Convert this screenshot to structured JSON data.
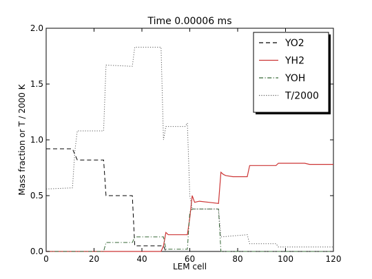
{
  "chart_data": {
    "type": "line",
    "title": "Time 0.00006 ms",
    "xlabel": "LEM cell",
    "ylabel": "Mass fraction or T / 2000 K",
    "xlim": [
      0,
      120
    ],
    "ylim": [
      0,
      2.0
    ],
    "xticks": [
      0,
      20,
      40,
      60,
      80,
      100,
      120
    ],
    "xtick_labels": [
      "0",
      "20",
      "40",
      "60",
      "80",
      "100",
      "120"
    ],
    "yticks": [
      0,
      0.5,
      1.0,
      1.5,
      2.0
    ],
    "ytick_labels": [
      "0.0",
      "0.5",
      "1.0",
      "1.5",
      "2.0"
    ],
    "grid": false,
    "legend_position": "top-right",
    "series": [
      {
        "name": "YO2",
        "color": "#000000",
        "style": "dashed",
        "x": [
          0,
          11,
          12,
          13,
          24,
          25,
          36,
          37,
          49,
          50,
          120
        ],
        "y": [
          0.92,
          0.92,
          0.87,
          0.82,
          0.82,
          0.5,
          0.5,
          0.05,
          0.05,
          0.0,
          0.0
        ]
      },
      {
        "name": "YH2",
        "color": "#cc3333",
        "style": "solid",
        "x": [
          0,
          48,
          49,
          50,
          51,
          55,
          59,
          60,
          61,
          62,
          64,
          68,
          72,
          73,
          74,
          75,
          78,
          80,
          84,
          85,
          88,
          92,
          96,
          97,
          100,
          104,
          108,
          110,
          120
        ],
        "y": [
          0.0,
          0.0,
          0.05,
          0.17,
          0.15,
          0.15,
          0.15,
          0.3,
          0.5,
          0.44,
          0.45,
          0.44,
          0.43,
          0.71,
          0.69,
          0.68,
          0.67,
          0.67,
          0.67,
          0.77,
          0.77,
          0.77,
          0.77,
          0.79,
          0.79,
          0.79,
          0.79,
          0.78,
          0.78
        ]
      },
      {
        "name": "YOH",
        "color": "#336633",
        "style": "dashdot",
        "x": [
          0,
          24,
          25,
          36,
          37,
          49,
          50,
          59,
          60,
          61,
          62,
          72,
          73,
          84,
          85,
          96,
          97,
          120
        ],
        "y": [
          0.0,
          0.0,
          0.08,
          0.08,
          0.13,
          0.13,
          0.02,
          0.02,
          0.35,
          0.38,
          0.38,
          0.38,
          0.0,
          0.0,
          0.0,
          0.0,
          0.0,
          0.0
        ]
      },
      {
        "name": "T/2000",
        "color": "#555555",
        "style": "dotted",
        "x": [
          0,
          11,
          12,
          13,
          24,
          25,
          35,
          36,
          37,
          48,
          49,
          50,
          58,
          59,
          60,
          61,
          71,
          72,
          73,
          84,
          85,
          96,
          97,
          120
        ],
        "y": [
          0.56,
          0.57,
          0.9,
          1.08,
          1.08,
          1.67,
          1.66,
          1.66,
          1.83,
          1.83,
          1.0,
          1.12,
          1.12,
          1.15,
          0.5,
          0.38,
          0.38,
          0.38,
          0.13,
          0.15,
          0.07,
          0.07,
          0.04,
          0.04
        ]
      }
    ]
  }
}
